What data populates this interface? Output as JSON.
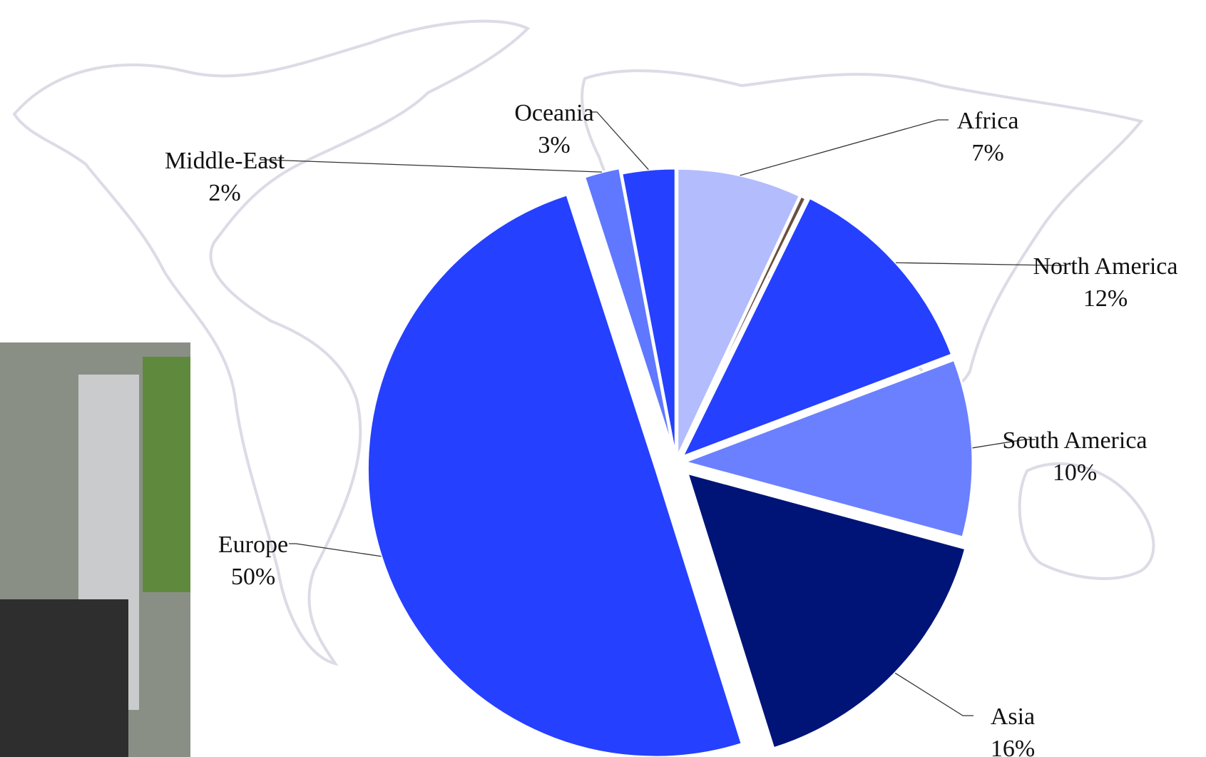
{
  "chart_data": {
    "type": "pie",
    "categories": [
      "Africa",
      null,
      "North America",
      "South America",
      "Asia",
      "Europe",
      "Middle-East",
      "Oceania"
    ],
    "values": [
      7,
      0.3,
      12,
      10,
      16,
      50,
      2,
      3
    ],
    "value_labels": [
      "7%",
      null,
      "12%",
      "10%",
      "16%",
      "50%",
      "2%",
      "3%"
    ],
    "colors": [
      "#b3bcfc",
      "#6b4f3f",
      "#2540ff",
      "#6b80ff",
      "#001478",
      "#2540ff",
      "#5f78ff",
      "#2540ff"
    ]
  }
}
